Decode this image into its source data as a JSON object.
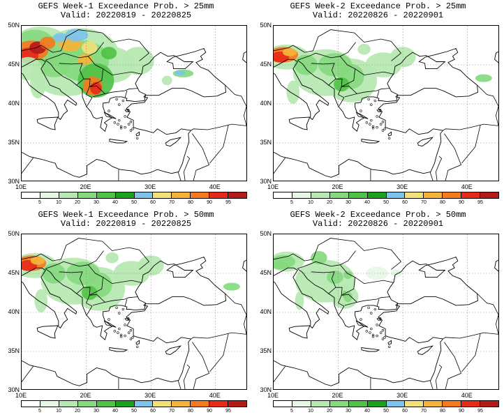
{
  "colors": {
    "bins": [
      "#ffffff",
      "#e6f7e6",
      "#b6e8b1",
      "#86d97f",
      "#4fc247",
      "#19a01c",
      "#7ec3ea",
      "#f2e07a",
      "#f4b43a",
      "#f47a20",
      "#e62a1a",
      "#b41a1a",
      "#c94a4a"
    ],
    "coast": "#000000",
    "grid": "#888888"
  },
  "colorbar_labels": [
    "5",
    "10",
    "20",
    "30",
    "40",
    "50",
    "60",
    "70",
    "80",
    "90",
    "95"
  ],
  "axes": {
    "lat_labels": [
      "50N",
      "45N",
      "40N",
      "35N",
      "30N"
    ],
    "lon_labels": [
      "10E",
      "20E",
      "30E",
      "40E"
    ]
  },
  "panels": [
    {
      "id": "w1-25",
      "title": "GEFS Week-1 Exceedance Prob. > 25mm",
      "valid": "Valid: 20220819 - 20220825",
      "intensity": "high"
    },
    {
      "id": "w2-25",
      "title": "GEFS Week-2 Exceedance Prob. > 25mm",
      "valid": "Valid: 20220826 - 20220901",
      "intensity": "mid"
    },
    {
      "id": "w1-50",
      "title": "GEFS Week-1 Exceedance Prob. > 50mm",
      "valid": "Valid: 20220819 - 20220825",
      "intensity": "mid"
    },
    {
      "id": "w2-50",
      "title": "GEFS Week-2 Exceedance Prob. > 50mm",
      "valid": "Valid: 20220826 - 20220901",
      "intensity": "low"
    }
  ]
}
